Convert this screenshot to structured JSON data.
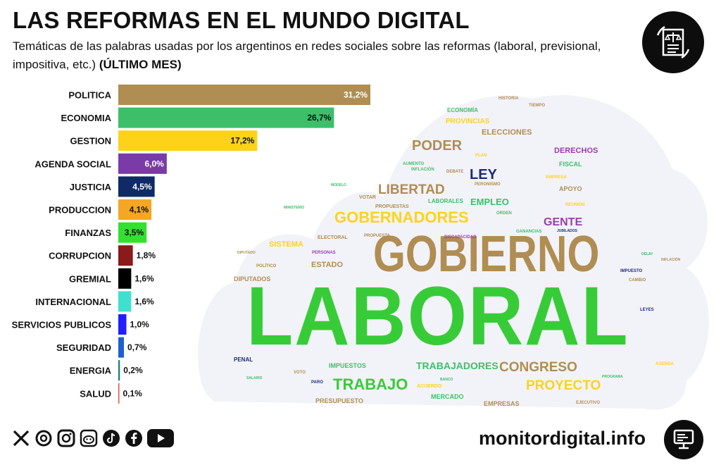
{
  "header": {
    "title": "LAS REFORMAS EN EL MUNDO DIGITAL",
    "subtitle": "Temáticas de las palabras usadas por los argentinos en redes sociales sobre las reformas (laboral, previsional, impositiva, etc.)",
    "subtitle_bold": "(ÚLTIMO MES)"
  },
  "chart_data": {
    "type": "bar",
    "orientation": "horizontal",
    "title": "LAS REFORMAS EN EL MUNDO DIGITAL",
    "categories": [
      "POLITICA",
      "ECONOMIA",
      "GESTION",
      "AGENDA SOCIAL",
      "JUSTICIA",
      "PRODUCCION",
      "FINANZAS",
      "CORRUPCION",
      "GREMIAL",
      "INTERNACIONAL",
      "SERVICIOS PUBLICOS",
      "SEGURIDAD",
      "ENERGIA",
      "SALUD"
    ],
    "values": [
      31.2,
      26.7,
      17.2,
      6.0,
      4.5,
      4.1,
      3.5,
      1.8,
      1.6,
      1.6,
      1.0,
      0.7,
      0.2,
      0.1
    ],
    "labels": [
      "31,2%",
      "26,7%",
      "17,2%",
      "6,0%",
      "4,5%",
      "4,1%",
      "3,5%",
      "1,8%",
      "1,6%",
      "1,6%",
      "1,0%",
      "0,7%",
      "0,2%",
      "0,1%"
    ],
    "colors": [
      "#b08d52",
      "#3dbf6a",
      "#ffd21a",
      "#7a3aa8",
      "#0f2a66",
      "#f5a623",
      "#33e02f",
      "#8b1a1a",
      "#000000",
      "#40e0d0",
      "#1f1fff",
      "#1f5fd0",
      "#1a8080",
      "#e05050"
    ],
    "xlim": [
      0,
      35
    ],
    "xlabel": "",
    "ylabel": ""
  },
  "word_cloud": [
    {
      "text": "LABORAL",
      "color": "#37cc37"
    },
    {
      "text": "GOBIERNO",
      "color": "#b08d52"
    },
    {
      "text": "GOBERNADORES",
      "color": "#ffd21a"
    },
    {
      "text": "LIBERTAD",
      "color": "#b08d52"
    },
    {
      "text": "PODER",
      "color": "#b08d52"
    },
    {
      "text": "LEY",
      "color": "#1f2a77"
    },
    {
      "text": "EMPLEO",
      "color": "#3dbf6a"
    },
    {
      "text": "GENTE",
      "color": "#9b3db0"
    },
    {
      "text": "CONGRESO",
      "color": "#b08d52"
    },
    {
      "text": "PROYECTO",
      "color": "#ffd21a"
    },
    {
      "text": "TRABAJO",
      "color": "#37cc37"
    },
    {
      "text": "TRABAJADORES",
      "color": "#3dbf6a"
    },
    {
      "text": "ELECCIONES",
      "color": "#b08d52"
    },
    {
      "text": "DERECHOS",
      "color": "#9b3db0"
    },
    {
      "text": "PROVINCIAS",
      "color": "#ffd21a"
    },
    {
      "text": "ECONOMÍA",
      "color": "#3dbf6a"
    },
    {
      "text": "SISTEMA",
      "color": "#ffd21a"
    },
    {
      "text": "ESTADO",
      "color": "#b08d52"
    },
    {
      "text": "DIPUTADOS",
      "color": "#b08d52"
    },
    {
      "text": "FISCAL",
      "color": "#3dbf6a"
    },
    {
      "text": "APOYO",
      "color": "#b08d52"
    },
    {
      "text": "LABORALES",
      "color": "#3dbf6a"
    },
    {
      "text": "IMPUESTOS",
      "color": "#3dbf6a"
    },
    {
      "text": "PRESUPUESTO",
      "color": "#b08d52"
    },
    {
      "text": "MERCADO",
      "color": "#3dbf6a"
    },
    {
      "text": "EMPRESAS",
      "color": "#b08d52"
    },
    {
      "text": "PENAL",
      "color": "#1f2a77"
    },
    {
      "text": "ACUERDO",
      "color": "#ffd21a"
    },
    {
      "text": "VOTAR",
      "color": "#b08d52"
    },
    {
      "text": "PROPUESTAS",
      "color": "#b08d52"
    },
    {
      "text": "ELECTORAL",
      "color": "#b08d52"
    },
    {
      "text": "PROPUESTA",
      "color": "#b08d52"
    },
    {
      "text": "PERSONAS",
      "color": "#9b3db0"
    },
    {
      "text": "DISCAPACIDAD",
      "color": "#9b3db0"
    },
    {
      "text": "PERONISMO",
      "color": "#b08d52"
    },
    {
      "text": "AUMENTO",
      "color": "#3dbf6a"
    },
    {
      "text": "INFLACIÓN",
      "color": "#3dbf6a"
    },
    {
      "text": "DEBATE",
      "color": "#b08d52"
    },
    {
      "text": "EMPRESA",
      "color": "#ffd21a"
    },
    {
      "text": "REUNIÓN",
      "color": "#ffd21a"
    },
    {
      "text": "HISTORIA",
      "color": "#b08d52"
    },
    {
      "text": "TIEMPO",
      "color": "#b08d52"
    },
    {
      "text": "IMPUESTO",
      "color": "#1f2a77"
    },
    {
      "text": "CAMBIO",
      "color": "#b08d52"
    },
    {
      "text": "LEYES",
      "color": "#1f2a77"
    },
    {
      "text": "POLÍTICO",
      "color": "#b08d52"
    },
    {
      "text": "PARO",
      "color": "#1f2a77"
    },
    {
      "text": "VOTO",
      "color": "#b08d52"
    },
    {
      "text": "EJECUTIVO",
      "color": "#b08d52"
    },
    {
      "text": "AGENDA",
      "color": "#ffd21a"
    },
    {
      "text": "SALARIO",
      "color": "#3dbf6a"
    },
    {
      "text": "BANCO",
      "color": "#3dbf6a"
    },
    {
      "text": "PROGRAMA",
      "color": "#3dbf6a"
    },
    {
      "text": "DIPUTADO",
      "color": "#b08d52"
    },
    {
      "text": "MINISTERIO",
      "color": "#3dbf6a"
    },
    {
      "text": "PLAN",
      "color": "#ffd21a"
    },
    {
      "text": "ORDEN",
      "color": "#3dbf6a"
    },
    {
      "text": "MODELO",
      "color": "#3dbf6a"
    },
    {
      "text": "GANANCIAS",
      "color": "#3dbf6a"
    },
    {
      "text": "JUBILADOS",
      "color": "#1f2a77"
    },
    {
      "text": "DELAY",
      "color": "#3dbf6a"
    },
    {
      "text": "INFLACIÓN",
      "color": "#b08d52"
    }
  ],
  "footer": {
    "website": "monitordigital.info",
    "social_icons": [
      "x-icon",
      "threads-icon",
      "instagram-icon",
      "reddit-icon",
      "tiktok-icon",
      "facebook-icon",
      "youtube-icon"
    ]
  }
}
